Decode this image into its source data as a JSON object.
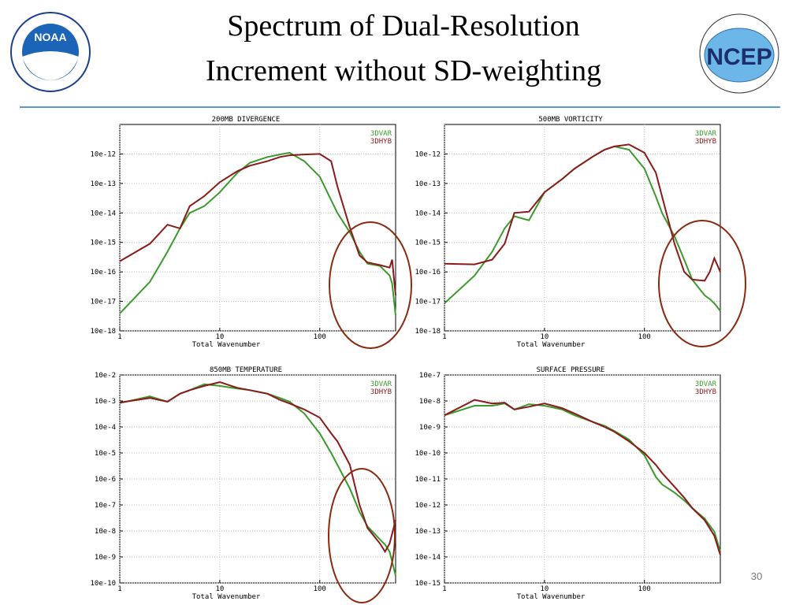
{
  "slide": {
    "title": [
      "Spectrum of Dual-Resolution",
      "Increment without SD-weighting"
    ],
    "page_number": "30",
    "logos": [
      "NOAA",
      "NCEP"
    ]
  },
  "chart_data": [
    {
      "type": "line",
      "title": "200MB DIVERGENCE",
      "x_label": "Total Wavenumber",
      "xlog": true,
      "ylog": true,
      "grid": true,
      "legend": "upper right",
      "x": [
        1,
        2,
        3,
        4,
        5,
        7,
        10,
        15,
        20,
        30,
        40,
        50,
        70,
        100,
        130,
        150,
        200,
        250,
        300,
        400,
        500,
        530,
        574
      ],
      "xlim": [
        1,
        574
      ],
      "xticks": [
        1,
        10,
        100
      ],
      "ylim": [
        1e-17,
        1e-10
      ],
      "yticks": [
        {
          "value": 1e-11,
          "label": "10e-12"
        },
        {
          "value": 1e-12,
          "label": "10e-13"
        },
        {
          "value": 1e-13,
          "label": "10e-14"
        },
        {
          "value": 1e-14,
          "label": "10e-15"
        },
        {
          "value": 1e-15,
          "label": "10e-16"
        },
        {
          "value": 1e-16,
          "label": "10e-17"
        },
        {
          "value": 1e-17,
          "label": "10e-18"
        }
      ],
      "series": [
        {
          "name": "3DVAR",
          "color": "#3a9b2c",
          "values": [
            3.9e-17,
            4.6e-16,
            4.8e-15,
            3e-14,
            1e-13,
            1.7e-13,
            5e-13,
            2.3e-12,
            5e-12,
            7.9e-12,
            9.6e-12,
            1.1e-11,
            5.7e-12,
            1.7e-12,
            2.7e-13,
            1e-13,
            2.2e-14,
            4.8e-15,
            1.9e-15,
            1.6e-15,
            7.5e-16,
            4e-16,
            3.4e-17
          ]
        },
        {
          "name": "3DHYB",
          "color": "#8b1a1a",
          "values": [
            2.3e-15,
            9e-15,
            4e-14,
            3e-14,
            1.7e-13,
            3.7e-13,
            1.1e-12,
            2.6e-12,
            4e-12,
            5.7e-12,
            7.9e-12,
            9e-12,
            9.6e-12,
            1e-11,
            5.7e-12,
            8e-13,
            3.2e-14,
            3.6e-15,
            2.1e-15,
            1.7e-15,
            1.4e-15,
            2.6e-15,
            1.6e-16
          ]
        }
      ]
    },
    {
      "type": "line",
      "title": "500MB VORTICITY",
      "x_label": "Total Wavenumber",
      "xlog": true,
      "ylog": true,
      "grid": true,
      "legend": "upper right",
      "x": [
        1,
        2,
        3,
        4,
        5,
        7,
        10,
        15,
        20,
        30,
        40,
        50,
        70,
        100,
        130,
        150,
        200,
        250,
        300,
        400,
        450,
        500,
        574
      ],
      "xlim": [
        1,
        574
      ],
      "xticks": [
        1,
        10,
        100
      ],
      "ylim": [
        1e-17,
        1e-10
      ],
      "yticks": [
        {
          "value": 1e-11,
          "label": "10e-12"
        },
        {
          "value": 1e-12,
          "label": "10e-13"
        },
        {
          "value": 1e-13,
          "label": "10e-14"
        },
        {
          "value": 1e-14,
          "label": "10e-15"
        },
        {
          "value": 1e-15,
          "label": "10e-16"
        },
        {
          "value": 1e-16,
          "label": "10e-17"
        },
        {
          "value": 1e-17,
          "label": "10e-18"
        }
      ],
      "series": [
        {
          "name": "3DVAR",
          "color": "#3a9b2c",
          "values": [
            8.6e-17,
            7.5e-16,
            4.8e-15,
            3e-14,
            7.7e-14,
            5.6e-14,
            5e-13,
            1.4e-12,
            3.2e-12,
            7.9e-12,
            1.4e-11,
            1.8e-11,
            1.4e-11,
            3.2e-12,
            3.6e-13,
            1e-13,
            1.6e-14,
            2.6e-15,
            5.5e-16,
            1.6e-16,
            1.2e-16,
            8.6e-17,
            4.7e-17
          ]
        },
        {
          "name": "3DHYB",
          "color": "#8b1a1a",
          "values": [
            1.9e-15,
            1.8e-15,
            2.6e-15,
            9e-15,
            1e-13,
            1.1e-13,
            5e-13,
            1.4e-12,
            3.2e-12,
            7.9e-12,
            1.4e-11,
            1.8e-11,
            2.1e-11,
            1.1e-11,
            2.3e-12,
            3.6e-13,
            9e-15,
            1e-15,
            5.5e-16,
            5e-16,
            1e-15,
            2.9e-15,
            1e-15
          ]
        }
      ]
    },
    {
      "type": "line",
      "title": "850MB TEMPERATURE",
      "x_label": "Total Wavenumber",
      "xlog": true,
      "ylog": true,
      "grid": true,
      "legend": "upper right",
      "x": [
        1,
        2,
        3,
        4,
        5,
        7,
        10,
        15,
        20,
        30,
        40,
        50,
        70,
        100,
        130,
        150,
        200,
        250,
        300,
        400,
        450,
        500,
        574
      ],
      "xlim": [
        1,
        574
      ],
      "xticks": [
        1,
        10,
        100
      ],
      "ylim": [
        1e-09,
        0.1
      ],
      "yticks": [
        {
          "value": 0.1,
          "label": "10e-2"
        },
        {
          "value": 0.01,
          "label": "10e-3"
        },
        {
          "value": 0.001,
          "label": "10e-4"
        },
        {
          "value": 0.0001,
          "label": "10e-5"
        },
        {
          "value": 1e-05,
          "label": "10e-6"
        },
        {
          "value": 1e-06,
          "label": "10e-7"
        },
        {
          "value": 1e-07,
          "label": "10e-8"
        },
        {
          "value": 1e-08,
          "label": "10e-9"
        },
        {
          "value": 1e-09,
          "label": "10e-10"
        }
      ],
      "series": [
        {
          "name": "3DVAR",
          "color": "#3a9b2c",
          "values": [
            0.0083,
            0.015,
            0.0094,
            0.019,
            0.026,
            0.044,
            0.038,
            0.03,
            0.026,
            0.019,
            0.013,
            0.0094,
            0.0033,
            0.00057,
            0.0001,
            3.5e-05,
            4.3e-06,
            5.4e-07,
            1.5e-07,
            4.7e-08,
            3e-08,
            1.6e-08,
            1.9e-09
          ]
        },
        {
          "name": "3DHYB",
          "color": "#8b1a1a",
          "values": [
            0.0087,
            0.013,
            0.0094,
            0.019,
            0.026,
            0.038,
            0.053,
            0.032,
            0.026,
            0.019,
            0.011,
            0.008,
            0.0047,
            0.0023,
            0.00057,
            0.00028,
            3.5e-05,
            1e-06,
            1.3e-07,
            3.3e-08,
            1.6e-08,
            3.3e-08,
            2.6e-07
          ]
        }
      ]
    },
    {
      "type": "line",
      "title": "SURFACE PRESSURE",
      "x_label": "Total Wavenumber",
      "xlog": true,
      "ylog": true,
      "grid": true,
      "legend": "upper right",
      "x": [
        1,
        2,
        3,
        4,
        5,
        7,
        10,
        15,
        20,
        30,
        40,
        50,
        70,
        100,
        130,
        150,
        200,
        250,
        300,
        400,
        500,
        574
      ],
      "xlim": [
        1,
        574
      ],
      "xticks": [
        1,
        10,
        100
      ],
      "ylim": [
        1e-14,
        1e-06
      ],
      "yticks": [
        {
          "value": 1e-06,
          "label": "10e-7"
        },
        {
          "value": 1e-07,
          "label": "10e-8"
        },
        {
          "value": 1e-08,
          "label": "10e-9"
        },
        {
          "value": 1e-09,
          "label": "10e-10"
        },
        {
          "value": 1e-10,
          "label": "10e-11"
        },
        {
          "value": 1e-11,
          "label": "10e-12"
        },
        {
          "value": 1e-12,
          "label": "10e-13"
        },
        {
          "value": 1e-13,
          "label": "10e-14"
        },
        {
          "value": 1e-14,
          "label": "10e-15"
        }
      ],
      "series": [
        {
          "name": "3DVAR",
          "color": "#3a9b2c",
          "values": [
            2.8e-08,
            6.6e-08,
            6.6e-08,
            8e-08,
            4.7e-08,
            7.5e-08,
            6.6e-08,
            4.7e-08,
            2.8e-08,
            1.6e-08,
            1.1e-08,
            7e-09,
            3.3e-09,
            8.1e-10,
            1.2e-10,
            6.2e-11,
            3e-11,
            1.5e-11,
            7.6e-12,
            3e-12,
            9.4e-13,
            1.6e-13
          ]
        },
        {
          "name": "3DHYB",
          "color": "#8b1a1a",
          "values": [
            2.8e-08,
            1.1e-07,
            8e-08,
            8.6e-08,
            4.7e-08,
            6e-08,
            8e-08,
            5.3e-08,
            3.3e-08,
            1.6e-08,
            1e-08,
            6.6e-09,
            2.8e-09,
            1e-09,
            3.5e-10,
            1.7e-10,
            5e-11,
            1.9e-11,
            7.6e-12,
            2.6e-12,
            6.6e-13,
            1.2e-13
          ]
        }
      ]
    }
  ]
}
